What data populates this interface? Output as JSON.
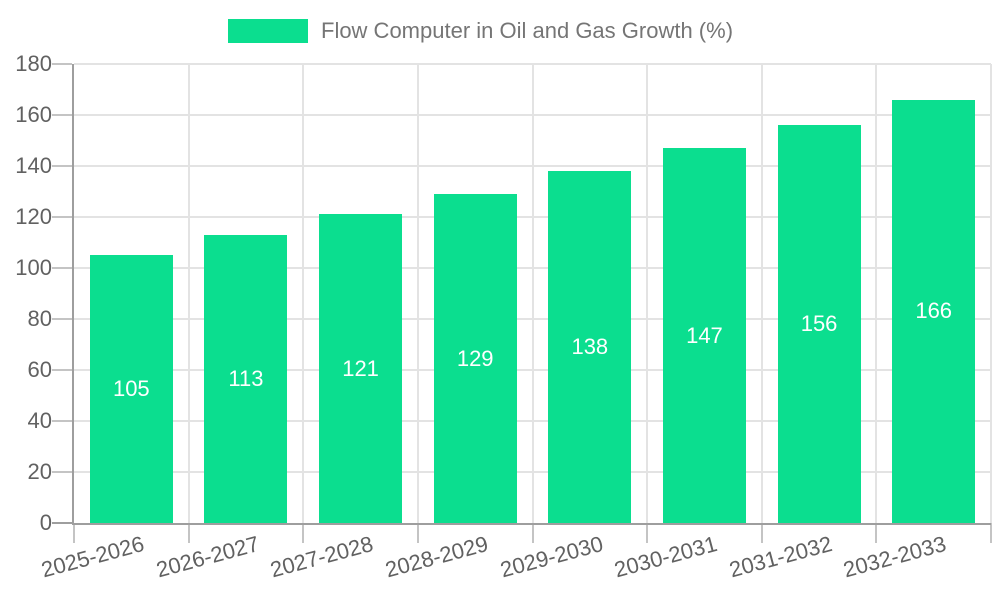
{
  "chart_data": {
    "type": "bar",
    "title": "Flow Computer in Oil and Gas Growth (%)",
    "categories": [
      "2025-2026",
      "2026-2027",
      "2027-2028",
      "2028-2029",
      "2029-2030",
      "2030-2031",
      "2031-2032",
      "2032-2033"
    ],
    "values": [
      105,
      113,
      121,
      129,
      138,
      147,
      156,
      166
    ],
    "xlabel": "",
    "ylabel": "",
    "ylim": [
      0,
      180
    ],
    "yticks": [
      0,
      20,
      40,
      60,
      80,
      100,
      120,
      140,
      160,
      180
    ],
    "grid": true,
    "legend_position": "top",
    "bar_color": "#0BDE8F",
    "value_label_color": "#FFFFFF",
    "grid_color": "#E3E3E3",
    "axis_color": "#9E9E9E",
    "tick_mark_color": "#C4C4C4",
    "tick_label_color": "#616161",
    "legend_text_color": "#757575",
    "background_color": "#FFFFFF"
  }
}
